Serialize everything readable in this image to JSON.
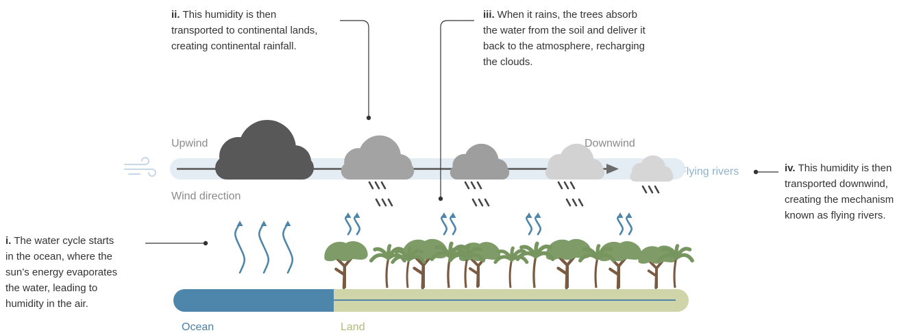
{
  "annotations": [
    {
      "marker": "i.",
      "lines": [
        "The water cycle starts",
        "in the ocean, where the",
        "sun’s energy evaporates",
        "the water, leading to",
        "humidity in the air."
      ]
    },
    {
      "marker": "ii.",
      "lines": [
        "This humidity is then",
        "transported to continental lands,",
        "creating continental rainfall."
      ]
    },
    {
      "marker": "iii.",
      "lines": [
        "When it rains, the trees absorb",
        "the water from the soil and deliver it",
        "back to the atmosphere, recharging",
        "the clouds."
      ]
    },
    {
      "marker": "iv.",
      "lines": [
        "This humidity is then",
        "transported downwind,",
        "creating the mechanism",
        "known as flying rivers."
      ]
    }
  ],
  "labels": {
    "upwind": "Upwind",
    "downwind": "Downwind",
    "wind_direction": "Wind direction",
    "flying_rivers": "Flying rivers",
    "ocean": "Ocean",
    "land": "Land"
  }
}
